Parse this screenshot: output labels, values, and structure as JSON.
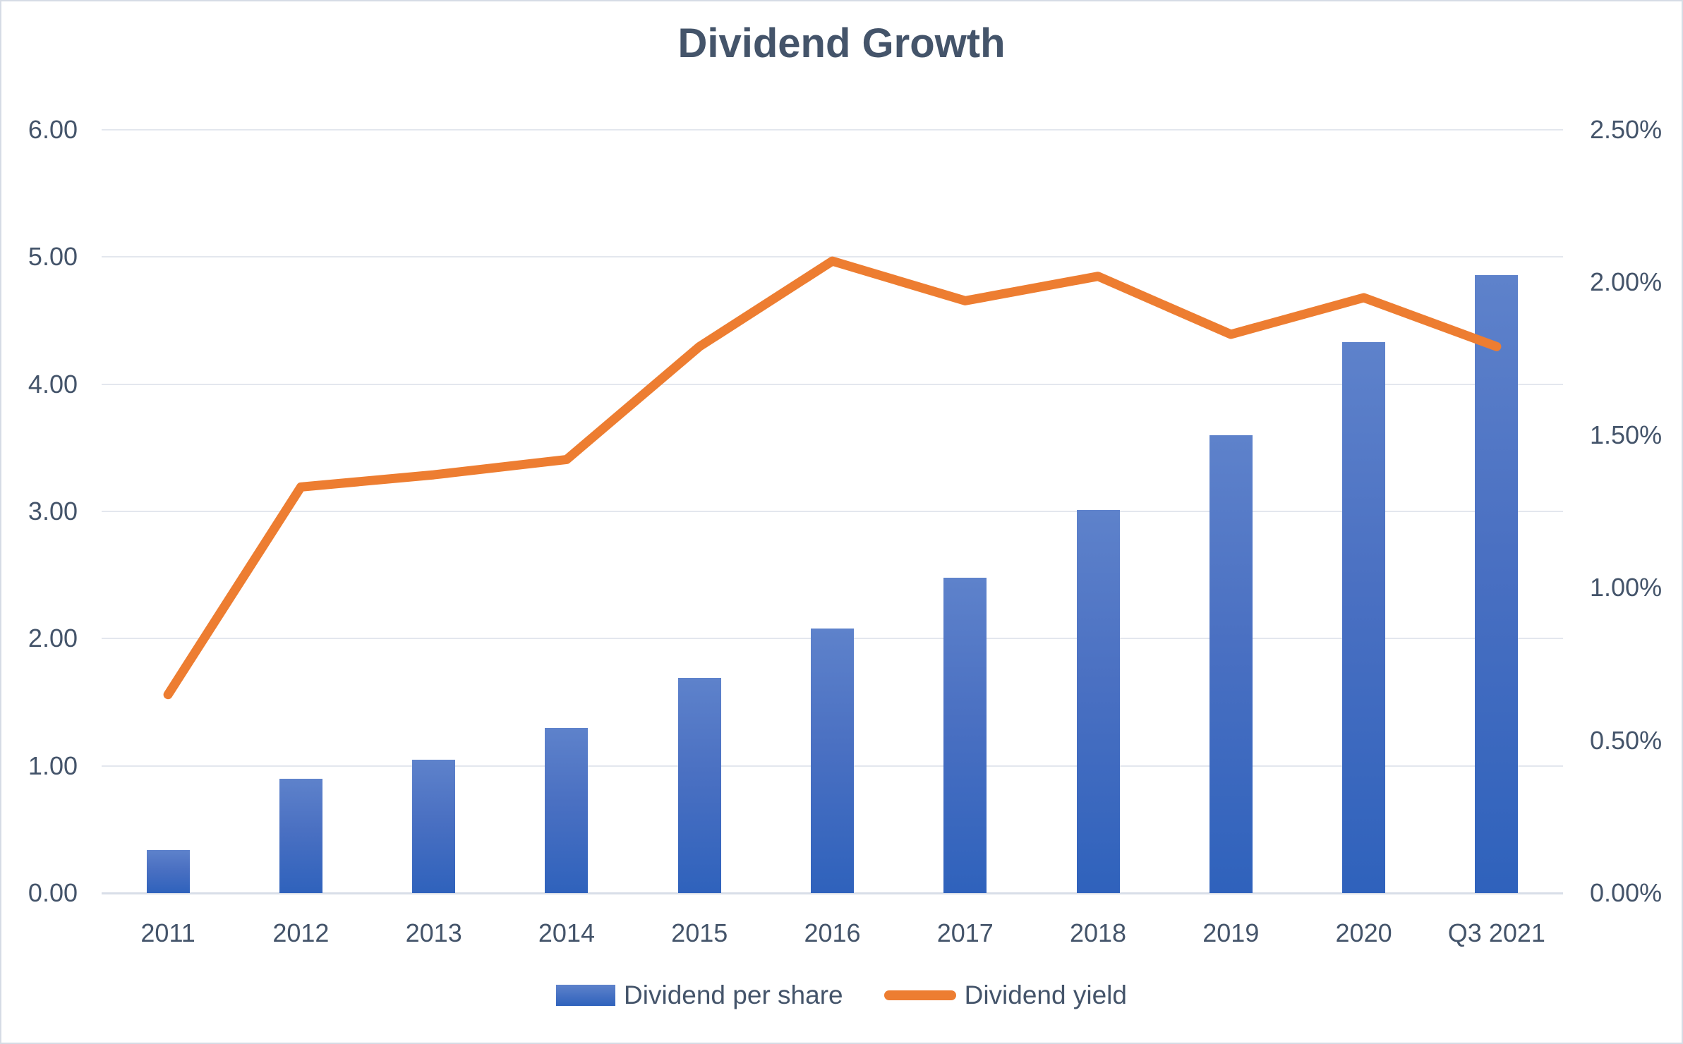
{
  "title": "Dividend Growth",
  "colors": {
    "bar_gradient_top": "#5B7EC8",
    "bar_gradient_bottom": "#2F62BC",
    "line": "#ED7D31",
    "text": "#44546A",
    "gridline": "#E3E7EE",
    "frame_border": "#D6DCE5",
    "background": "#FFFFFF"
  },
  "legend": {
    "position": "bottom",
    "items": [
      {
        "label": "Dividend per share",
        "swatch": "blue-bar"
      },
      {
        "label": "Dividend yield",
        "swatch": "orange-line"
      }
    ]
  },
  "left_axis": {
    "min": 0,
    "max": 6,
    "ticks": [
      "6.00",
      "5.00",
      "4.00",
      "3.00",
      "2.00",
      "1.00",
      "0.00"
    ]
  },
  "right_axis": {
    "min": 0,
    "max": 2.5,
    "ticks": [
      "2.50%",
      "2.00%",
      "1.50%",
      "1.00%",
      "0.50%",
      "0.00%"
    ]
  },
  "chart_data": {
    "type": "combo",
    "title": "Dividend Growth",
    "xlabel": "",
    "ylabel_left": "",
    "ylabel_right": "",
    "grid": true,
    "legend_position": "bottom",
    "categories": [
      "2011",
      "2012",
      "2013",
      "2014",
      "2015",
      "2016",
      "2017",
      "2018",
      "2019",
      "2020",
      "Q3 2021"
    ],
    "series": [
      {
        "name": "Dividend per share",
        "type": "bar",
        "axis": "left",
        "axis_range": [
          0,
          6
        ],
        "values": [
          0.34,
          0.9,
          1.05,
          1.3,
          1.69,
          2.08,
          2.48,
          3.01,
          3.6,
          4.33,
          4.86
        ]
      },
      {
        "name": "Dividend yield",
        "type": "line",
        "axis": "right",
        "axis_range_pct": [
          0,
          2.5
        ],
        "values_pct": [
          0.65,
          1.33,
          1.37,
          1.42,
          1.79,
          2.07,
          1.94,
          2.02,
          1.83,
          1.95,
          1.79
        ]
      }
    ]
  }
}
